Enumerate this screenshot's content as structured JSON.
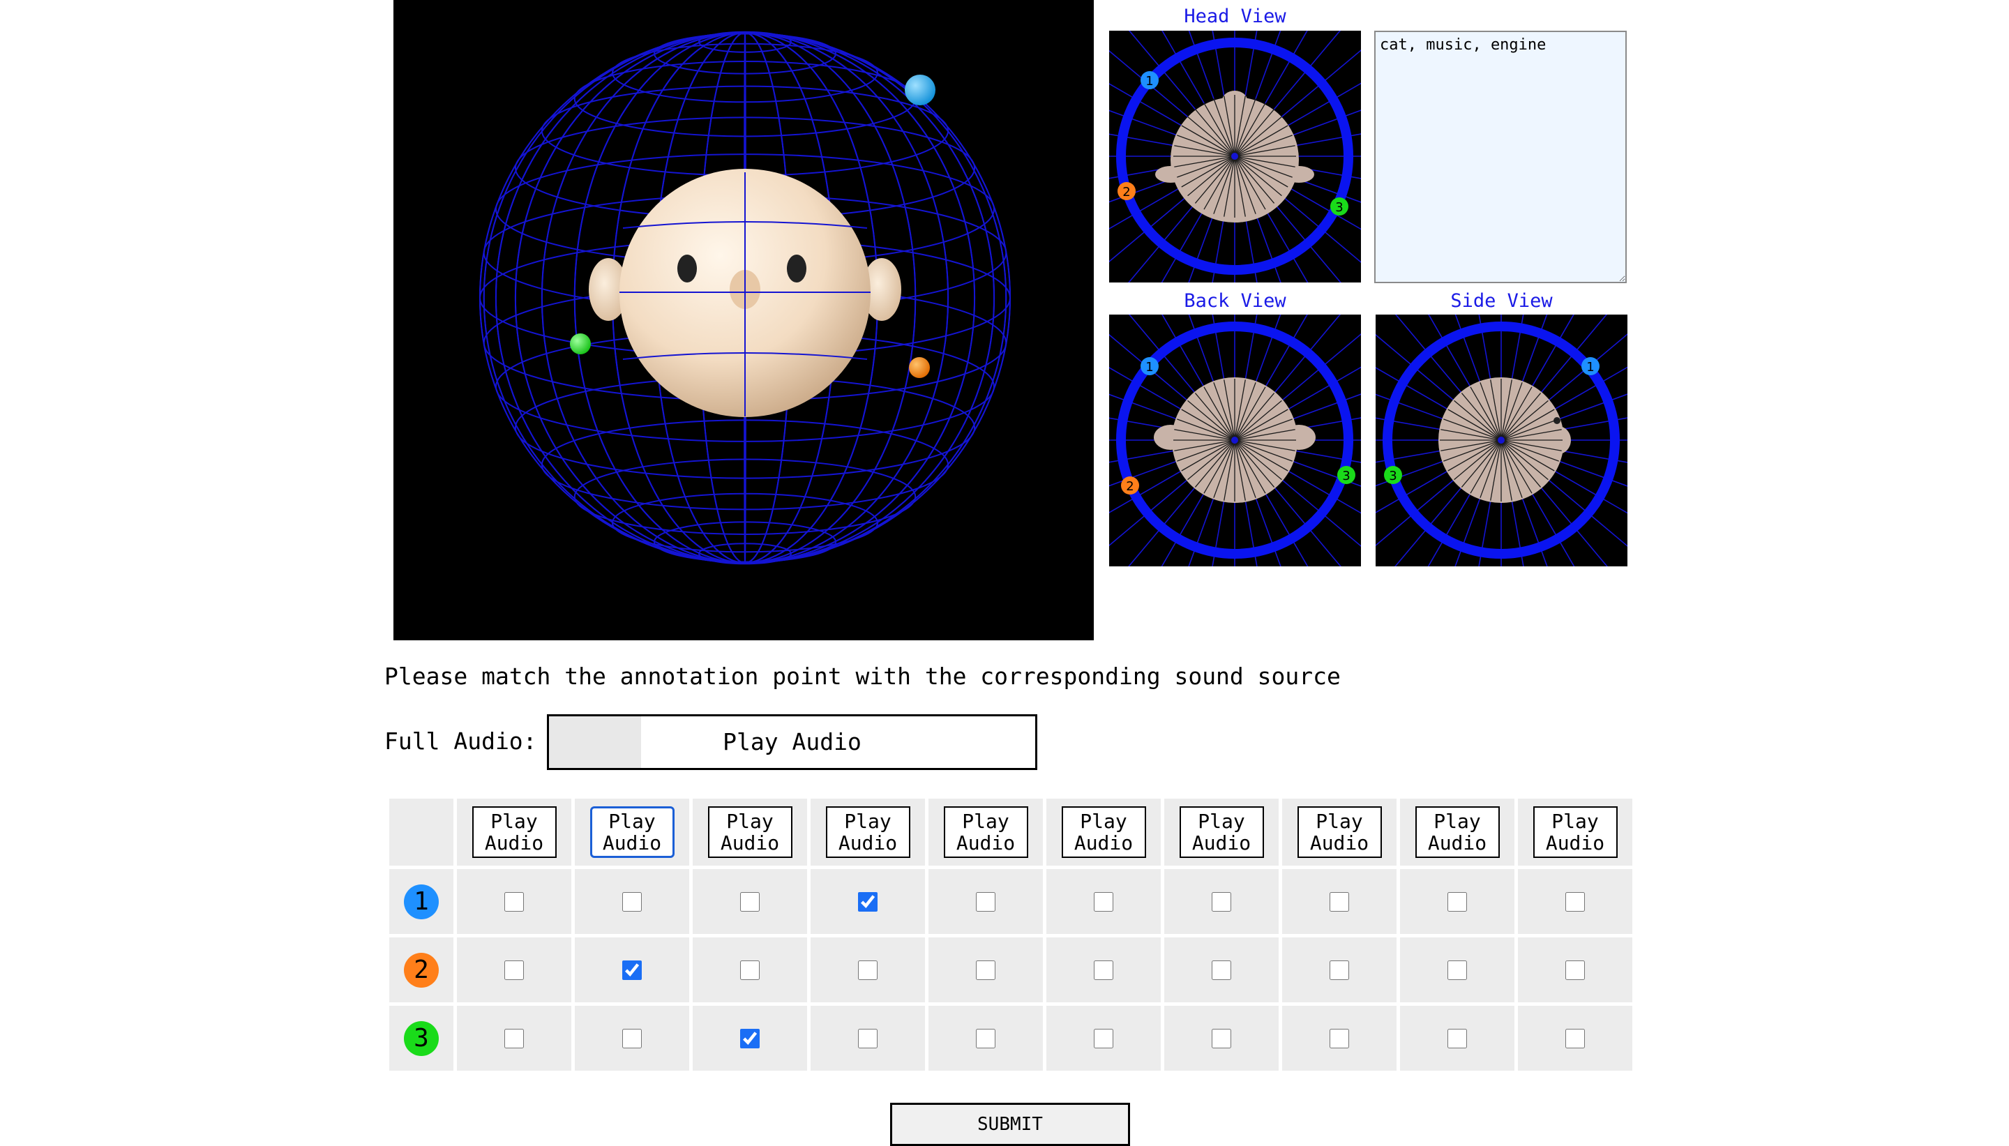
{
  "views": {
    "head_title": "Head View",
    "back_title": "Back View",
    "side_title": "Side View"
  },
  "notes": {
    "value": "cat, music, engine"
  },
  "instruction": "Please match the annotation point with the corresponding sound source",
  "full_audio": {
    "label": "Full Audio:",
    "button": "Play Audio",
    "progress_fraction": 0.19
  },
  "table": {
    "play_label_line1": "Play",
    "play_label_line2": "Audio",
    "column_count": 10,
    "rows": [
      {
        "label": "1",
        "color": "#1e90ff",
        "checked": [
          false,
          false,
          false,
          true,
          false,
          false,
          false,
          false,
          false,
          false
        ]
      },
      {
        "label": "2",
        "color": "#ff7f1a",
        "checked": [
          false,
          true,
          false,
          false,
          false,
          false,
          false,
          false,
          false,
          false
        ]
      },
      {
        "label": "3",
        "color": "#1adb1a",
        "checked": [
          false,
          false,
          true,
          false,
          false,
          false,
          false,
          false,
          false,
          false
        ]
      }
    ]
  },
  "submit": "SUBMIT",
  "colors": {
    "sphere_wire": "#1414d2",
    "ring": "#0a14f0",
    "source_1": "#1e90ff",
    "source_2": "#ff7f1a",
    "source_3": "#1adb1a"
  }
}
